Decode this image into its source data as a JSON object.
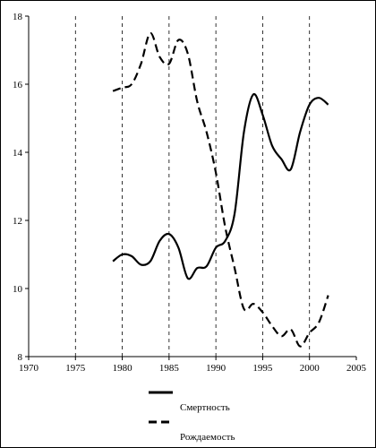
{
  "chart_data": {
    "type": "line",
    "title": "",
    "xlabel": "",
    "ylabel": "",
    "xlim": [
      1970,
      2005
    ],
    "ylim": [
      8,
      18
    ],
    "x_ticks": [
      1970,
      1975,
      1980,
      1985,
      1990,
      1995,
      2000,
      2005
    ],
    "y_ticks": [
      8,
      10,
      12,
      14,
      16,
      18
    ],
    "vertical_grid": "dashed, at every x tick",
    "horizontal_grid": false,
    "legend_position": "bottom-center",
    "series": [
      {
        "name": "Смертность",
        "style": "solid",
        "color": "#000000",
        "points": [
          [
            1979,
            10.8
          ],
          [
            1980,
            11.0
          ],
          [
            1981,
            10.95
          ],
          [
            1982,
            10.7
          ],
          [
            1983,
            10.8
          ],
          [
            1984,
            11.4
          ],
          [
            1985,
            11.6
          ],
          [
            1986,
            11.2
          ],
          [
            1987,
            10.3
          ],
          [
            1988,
            10.6
          ],
          [
            1989,
            10.65
          ],
          [
            1990,
            11.2
          ],
          [
            1991,
            11.4
          ],
          [
            1992,
            12.2
          ],
          [
            1993,
            14.6
          ],
          [
            1994,
            15.7
          ],
          [
            1995,
            15.1
          ],
          [
            1996,
            14.2
          ],
          [
            1997,
            13.8
          ],
          [
            1998,
            13.5
          ],
          [
            1999,
            14.6
          ],
          [
            2000,
            15.4
          ],
          [
            2001,
            15.6
          ],
          [
            2002,
            15.4
          ]
        ]
      },
      {
        "name": "Рождаемость",
        "style": "dashed",
        "color": "#000000",
        "points": [
          [
            1979,
            15.8
          ],
          [
            1980,
            15.9
          ],
          [
            1981,
            16.0
          ],
          [
            1982,
            16.6
          ],
          [
            1983,
            17.5
          ],
          [
            1984,
            16.8
          ],
          [
            1985,
            16.6
          ],
          [
            1986,
            17.3
          ],
          [
            1987,
            16.9
          ],
          [
            1988,
            15.5
          ],
          [
            1989,
            14.6
          ],
          [
            1990,
            13.4
          ],
          [
            1991,
            11.8
          ],
          [
            1992,
            10.6
          ],
          [
            1993,
            9.4
          ],
          [
            1994,
            9.55
          ],
          [
            1995,
            9.3
          ],
          [
            1996,
            8.9
          ],
          [
            1997,
            8.6
          ],
          [
            1998,
            8.8
          ],
          [
            1999,
            8.3
          ],
          [
            2000,
            8.7
          ],
          [
            2001,
            9.0
          ],
          [
            2002,
            9.8
          ]
        ]
      }
    ]
  }
}
